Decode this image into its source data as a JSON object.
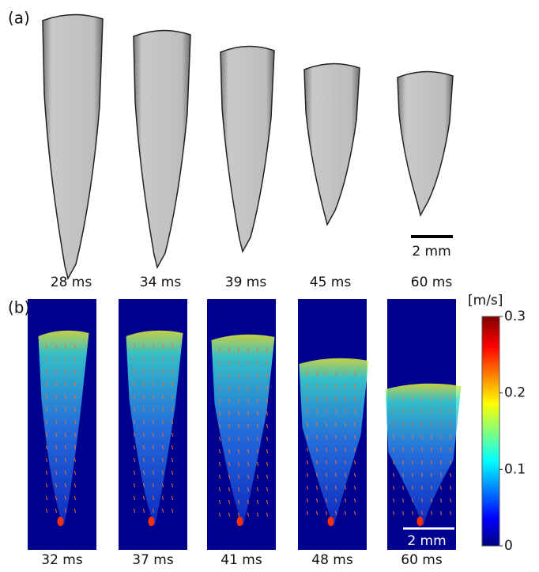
{
  "panel_a": {
    "label": "(a)",
    "frames": [
      {
        "time": "28 ms"
      },
      {
        "time": "34 ms"
      },
      {
        "time": "39 ms"
      },
      {
        "time": "45 ms"
      },
      {
        "time": "60 ms"
      }
    ],
    "scale_bar": "2 mm"
  },
  "panel_b": {
    "label": "(b)",
    "frames": [
      {
        "time": "32 ms"
      },
      {
        "time": "37 ms"
      },
      {
        "time": "41 ms"
      },
      {
        "time": "48 ms"
      },
      {
        "time": "60 ms"
      }
    ],
    "scale_bar": "2 mm",
    "colorbar": {
      "label": "[m/s]",
      "lim": [
        0,
        0.3
      ],
      "ticks": [
        0,
        0.1,
        0.2,
        0.3
      ]
    }
  }
}
